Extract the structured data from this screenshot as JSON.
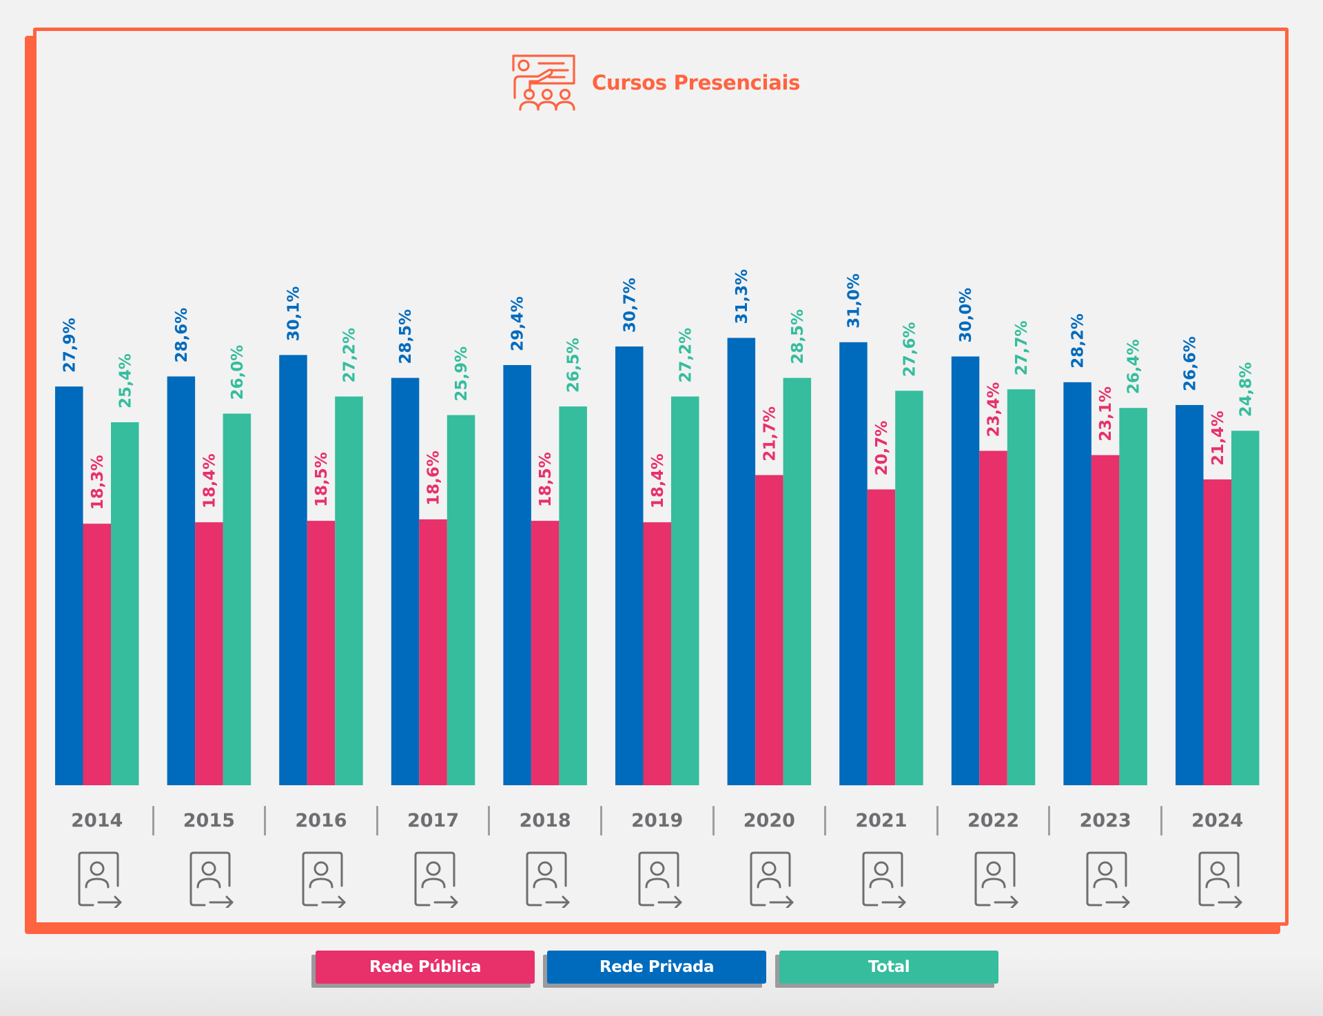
{
  "title": "Cursos Presenciais",
  "icons": {
    "title_icon": "teacher-presentation-icon",
    "year_icon": "person-exit-icon"
  },
  "colors": {
    "frame": "#ff6340",
    "rede_publica": "#e8306a",
    "rede_privada": "#006bbd",
    "total": "#35bd9d",
    "year_text": "#6d6e71"
  },
  "legend": [
    {
      "label": "Rede Pública",
      "series": "rede_publica"
    },
    {
      "label": "Rede Privada",
      "series": "rede_privada"
    },
    {
      "label": "Total",
      "series": "total"
    }
  ],
  "chart_data": {
    "type": "bar",
    "title": "Cursos Presenciais",
    "xlabel": "",
    "ylabel": "",
    "ylim": [
      0,
      35
    ],
    "grid": false,
    "legend_position": "bottom",
    "categories": [
      "2014",
      "2015",
      "2016",
      "2017",
      "2018",
      "2019",
      "2020",
      "2021",
      "2022",
      "2023",
      "2024"
    ],
    "series": [
      {
        "name": "Rede Privada",
        "key": "rede_privada",
        "values": [
          27.9,
          28.6,
          30.1,
          28.5,
          29.4,
          30.7,
          31.3,
          31.0,
          30.0,
          28.2,
          26.6
        ],
        "labels": [
          "27,9%",
          "28,6%",
          "30,1%",
          "28,5%",
          "29,4%",
          "30,7%",
          "31,3%",
          "31,0%",
          "30,0%",
          "28,2%",
          "26,6%"
        ]
      },
      {
        "name": "Rede Pública",
        "key": "rede_publica",
        "values": [
          18.3,
          18.4,
          18.5,
          18.6,
          18.5,
          18.4,
          21.7,
          20.7,
          23.4,
          23.1,
          21.4
        ],
        "labels": [
          "18,3%",
          "18,4%",
          "18,5%",
          "18,6%",
          "18,5%",
          "18,4%",
          "21,7%",
          "20,7%",
          "23,4%",
          "23,1%",
          "21,4%"
        ]
      },
      {
        "name": "Total",
        "key": "total",
        "values": [
          25.4,
          26.0,
          27.2,
          25.9,
          26.5,
          27.2,
          28.5,
          27.6,
          27.7,
          26.4,
          24.8
        ],
        "labels": [
          "25,4%",
          "26,0%",
          "27,2%",
          "25,9%",
          "26,5%",
          "27,2%",
          "28,5%",
          "27,6%",
          "27,7%",
          "26,4%",
          "24,8%"
        ]
      }
    ]
  }
}
